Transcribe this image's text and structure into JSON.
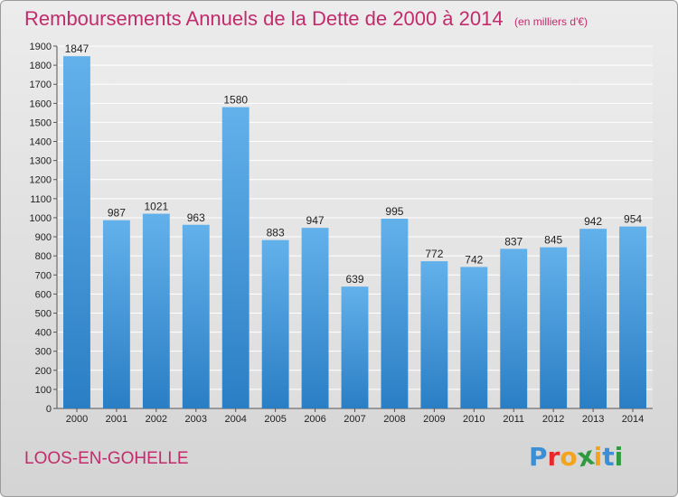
{
  "header": {
    "title": "Remboursements Annuels de la Dette de 2000 à 2014",
    "subtitle": "(en milliers d'€)"
  },
  "footer": {
    "city": "LOOS-EN-GOHELLE",
    "logo_letters": [
      "P",
      "r",
      "o",
      "x",
      "i",
      "t",
      "i"
    ],
    "logo_colors": [
      "#3b8fd6",
      "#e8282b",
      "#f4a41c",
      "#2f9a3f",
      "#f4a41c",
      "#3b8fd6",
      "#2f9a3f"
    ]
  },
  "colors": {
    "title": "#c22b6c",
    "bar_top": "#63b1eb",
    "bar_bottom": "#2a7ec4"
  },
  "chart_data": {
    "type": "bar",
    "title": "Remboursements Annuels de la Dette de 2000 à 2014",
    "subtitle": "(en milliers d'€)",
    "xlabel": "",
    "ylabel": "",
    "categories": [
      "2000",
      "2001",
      "2002",
      "2003",
      "2004",
      "2005",
      "2006",
      "2007",
      "2008",
      "2009",
      "2010",
      "2011",
      "2012",
      "2013",
      "2014"
    ],
    "values": [
      1847,
      987,
      1021,
      963,
      1580,
      883,
      947,
      639,
      995,
      772,
      742,
      837,
      845,
      942,
      954
    ],
    "ylim": [
      0,
      1900
    ],
    "yticks": [
      0,
      100,
      200,
      300,
      400,
      500,
      600,
      700,
      800,
      900,
      1000,
      1100,
      1200,
      1300,
      1400,
      1500,
      1600,
      1700,
      1800,
      1900
    ],
    "grid": true,
    "legend": "none"
  }
}
